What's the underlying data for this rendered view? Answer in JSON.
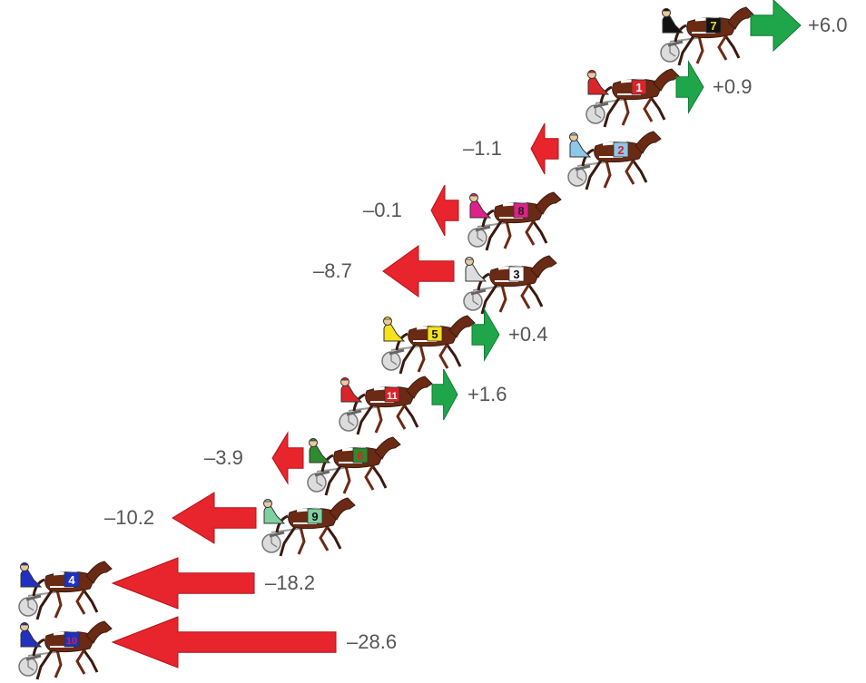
{
  "colors": {
    "gain": "#1fa64a",
    "loss": "#e8242c",
    "label": "#555555",
    "horse": "#6b2a14",
    "horse_dark": "#3a1a10"
  },
  "entries": [
    {
      "number": "7",
      "change": "+6.0",
      "value": 6.0,
      "saddle_color": "#111111",
      "number_color": "#f3e01a",
      "driver_color": "#111111"
    },
    {
      "number": "1",
      "change": "+0.9",
      "value": 0.9,
      "saddle_color": "#d9242a",
      "number_color": "#ffffff",
      "driver_color": "#d9242a"
    },
    {
      "number": "2",
      "change": "–1.1",
      "value": -1.1,
      "saddle_color": "#8ec8e8",
      "number_color": "#d9242a",
      "driver_color": "#8ec8e8"
    },
    {
      "number": "8",
      "change": "–0.1",
      "value": -0.1,
      "saddle_color": "#e0208a",
      "number_color": "#222222",
      "driver_color": "#e0208a"
    },
    {
      "number": "3",
      "change": "–8.7",
      "value": -8.7,
      "saddle_color": "#ffffff",
      "number_color": "#111111",
      "driver_color": "#dddddd"
    },
    {
      "number": "5",
      "change": "+0.4",
      "value": 0.4,
      "saddle_color": "#f6e21a",
      "number_color": "#111111",
      "driver_color": "#f6e21a"
    },
    {
      "number": "11",
      "change": "+1.6",
      "value": 1.6,
      "saddle_color": "#d9242a",
      "number_color": "#ffffff",
      "driver_color": "#d9242a"
    },
    {
      "number": "6",
      "change": "–3.9",
      "value": -3.9,
      "saddle_color": "#2e8b2e",
      "number_color": "#d9242a",
      "driver_color": "#2e8b2e"
    },
    {
      "number": "9",
      "change": "–10.2",
      "value": -10.2,
      "saddle_color": "#7fd0a0",
      "number_color": "#111111",
      "driver_color": "#7fd0a0"
    },
    {
      "number": "4",
      "change": "–18.2",
      "value": -18.2,
      "saddle_color": "#2030c0",
      "number_color": "#ffffff",
      "driver_color": "#2030c0"
    },
    {
      "number": "10",
      "change": "–28.6",
      "value": -28.6,
      "saddle_color": "#2030c0",
      "number_color": "#d9242a",
      "driver_color": "#2030c0"
    }
  ]
}
